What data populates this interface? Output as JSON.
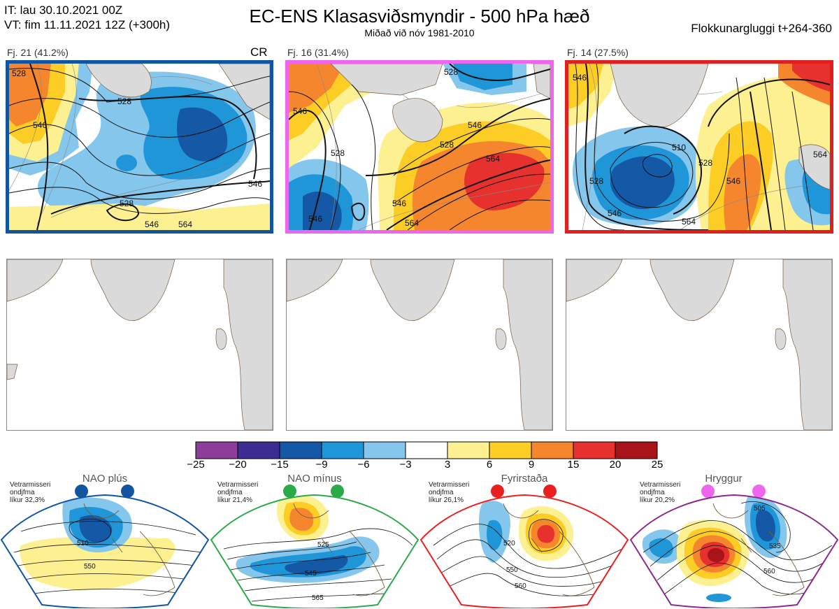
{
  "header": {
    "it_line": "IT: lau 30.10.2021 00Z",
    "vt_line": "VT: fim 11.11.2021 12Z  (+300h)",
    "title": "EC-ENS Klasasviðsmyndir - 500 hPa hæð",
    "subtitle": "Miðað við nóv 1981-2010",
    "window": "Flokkunargluggi t+264-360"
  },
  "clusters": [
    {
      "label": "Fj. 21 (41.2%)",
      "tag": "CR",
      "border": "#1155a0",
      "contour_labels": [
        "528",
        "528",
        "528",
        "546",
        "546",
        "546",
        "564"
      ]
    },
    {
      "label": "Fj. 16 (31.4%)",
      "tag": "",
      "border": "#ee66ee",
      "contour_labels": [
        "546",
        "528",
        "546",
        "528",
        "546",
        "564",
        "546",
        "564",
        "528"
      ]
    },
    {
      "label": "Fj. 14 (27.5%)",
      "tag": "",
      "border": "#e02020",
      "contour_labels": [
        "528",
        "546",
        "510",
        "528",
        "546",
        "564",
        "546",
        "564"
      ]
    }
  ],
  "colors": {
    "land": "#dadada",
    "coast": "#7a5a3a",
    "contour": "#111111"
  },
  "chart_data": {
    "type": "heatmap",
    "title": "EC-ENS Klasasviðsmyndir - 500 hPa hæð",
    "colorbar": {
      "ticks": [
        "−25",
        "−20",
        "−15",
        "−9",
        "−6",
        "−3",
        "3",
        "6",
        "9",
        "15",
        "20",
        "25"
      ],
      "bins": [
        {
          "from": -25,
          "to": -20,
          "color": "#8b3f9a"
        },
        {
          "from": -20,
          "to": -15,
          "color": "#3d2d92"
        },
        {
          "from": -15,
          "to": -9,
          "color": "#1558a6"
        },
        {
          "from": -9,
          "to": -6,
          "color": "#1e96d8"
        },
        {
          "from": -6,
          "to": -3,
          "color": "#85c6ec"
        },
        {
          "from": -3,
          "to": 3,
          "color": "#ffffff"
        },
        {
          "from": 3,
          "to": 6,
          "color": "#fdf091"
        },
        {
          "from": 6,
          "to": 9,
          "color": "#fccd24"
        },
        {
          "from": 9,
          "to": 15,
          "color": "#f5862d"
        },
        {
          "from": 15,
          "to": 20,
          "color": "#e6312e"
        },
        {
          "from": 20,
          "to": 25,
          "color": "#a8141a"
        }
      ]
    },
    "regimes": [
      {
        "name": "NAO plús",
        "info": [
          "Vetrarmisseri",
          "ondjfma",
          "líkur 32,3%"
        ],
        "dot_color": "#1155a0",
        "border": "#1155a0",
        "contour_labels": [
          "510",
          "550"
        ]
      },
      {
        "name": "NAO mínus",
        "info": [
          "Vetrarmisseri",
          "ondjfma",
          "líkur 21,4%"
        ],
        "dot_color": "#2aaa48",
        "border": "#2aaa48",
        "contour_labels": [
          "525",
          "545",
          "565"
        ]
      },
      {
        "name": "Fyrirstaða",
        "info": [
          "Vetrarmisseri",
          "ondjfma",
          "líkur 26,1%"
        ],
        "dot_color": "#e82020",
        "border": "#e82020",
        "contour_labels": [
          "520",
          "550",
          "560"
        ]
      },
      {
        "name": "Hryggur",
        "info": [
          "Vetrarmisseri",
          "ondjfma",
          "líkur 20,2%"
        ],
        "dot_color": "#ee66ee",
        "border": "#8a2a8e",
        "contour_labels": [
          "505",
          "535",
          "560"
        ]
      }
    ]
  }
}
